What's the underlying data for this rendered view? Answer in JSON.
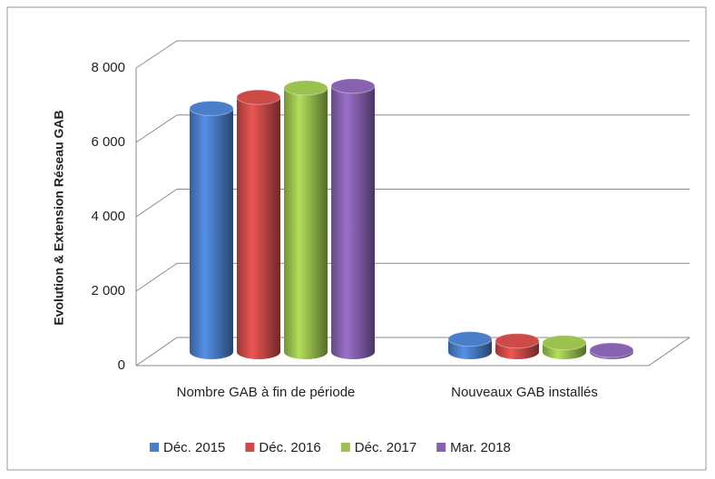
{
  "chart_data": {
    "type": "bar3d",
    "y_label": "Evolution & Extension Réseau GAB",
    "categories": [
      "Nombre GAB à fin de période",
      "Nouveaux GAB installés"
    ],
    "series": [
      {
        "name": "Déc. 2015",
        "color": "#4a7ec8",
        "values": [
          6550,
          350
        ]
      },
      {
        "name": "Déc. 2016",
        "color": "#cc4b48",
        "values": [
          6850,
          300
        ]
      },
      {
        "name": "Déc. 2017",
        "color": "#9bc24f",
        "values": [
          7100,
          250
        ]
      },
      {
        "name": "Mar. 2018",
        "color": "#8662b0",
        "values": [
          7150,
          50
        ]
      }
    ],
    "ylim": [
      0,
      8000
    ],
    "yticks": [
      0,
      {
        "value": 2000,
        "label": "2 000"
      },
      {
        "value": 4000,
        "label": "4 000"
      },
      {
        "value": 6000,
        "label": "6 000"
      },
      {
        "value": 8000,
        "label": "8 000"
      }
    ],
    "grid": true,
    "legend": "bottom"
  }
}
